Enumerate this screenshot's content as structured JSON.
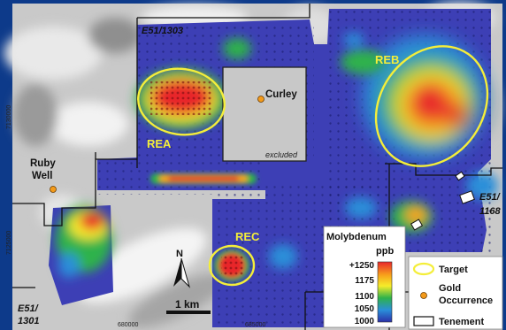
{
  "tenements": {
    "e51_1303": "E51/1303",
    "e51_1301_line1": "E51/",
    "e51_1301_line2": "1301",
    "e51_1168_line1": "E51/",
    "e51_1168_line2": "1168"
  },
  "targets": {
    "rea": "REA",
    "reb": "REB",
    "rec": "REC"
  },
  "occurrences": {
    "curley": "Curley",
    "ruby_line1": "Ruby",
    "ruby_line2": "Well"
  },
  "excluded_label": "excluded",
  "coords": {
    "northing_top": "7130000",
    "northing_bottom": "7125000",
    "easting_left": "680000",
    "easting_right": "685000"
  },
  "scale": {
    "north": "N",
    "label": "1 km"
  },
  "colorbar": {
    "title_line1": "Molybdenum",
    "title_line2": "ppb",
    "ticks": [
      "+1250",
      "1175",
      "1100",
      "1050",
      "1000"
    ],
    "colors": [
      "#e8262b",
      "#f7a21b",
      "#f6ec2a",
      "#2eb24b",
      "#2a8fd9",
      "#2b2fa8"
    ]
  },
  "legend": {
    "target": "Target",
    "gold_line1": "Gold",
    "gold_line2": "Occurrence",
    "tenement": "Tenement"
  },
  "colors": {
    "target_outline": "#f4ee3a",
    "gold_dot": "#f39a1a",
    "frame": "#0d3a8a"
  }
}
